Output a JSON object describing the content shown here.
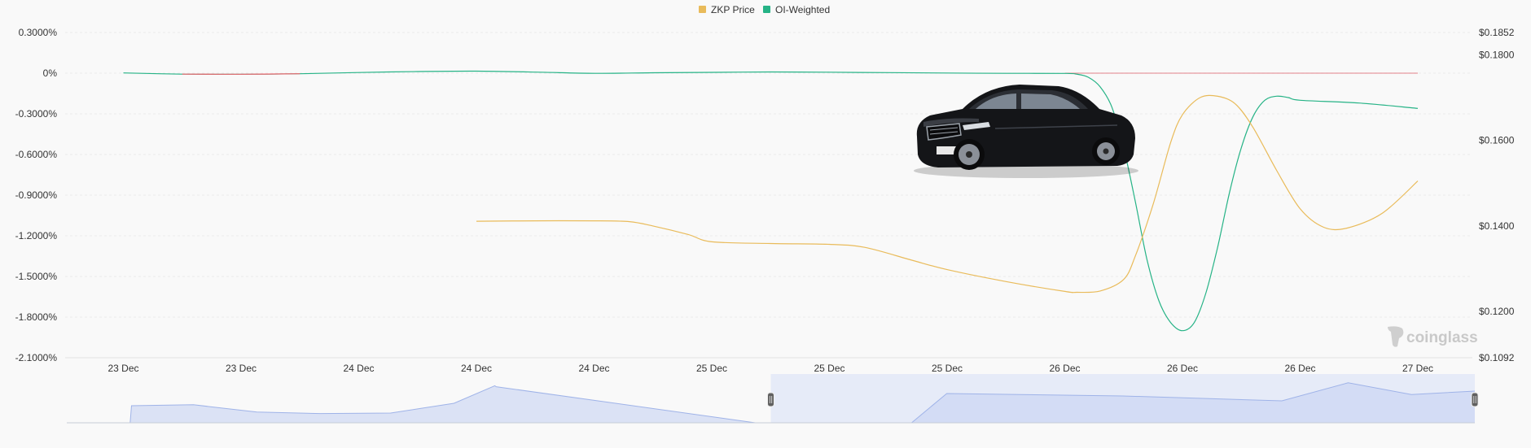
{
  "legend": [
    {
      "label": "ZKP Price",
      "color": "#e9bb5a"
    },
    {
      "label": "OI-Weighted",
      "color": "#26b386"
    }
  ],
  "watermark": "coinglass",
  "chart_data": {
    "type": "line",
    "x_tick_labels": [
      "23 Dec",
      "23 Dec",
      "24 Dec",
      "24 Dec",
      "24 Dec",
      "25 Dec",
      "25 Dec",
      "25 Dec",
      "26 Dec",
      "26 Dec",
      "26 Dec",
      "27 Dec"
    ],
    "y_left": {
      "ticks": [
        "0.3000%",
        "0%",
        "-0.3000%",
        "-0.6000%",
        "-0.9000%",
        "-1.2000%",
        "-1.5000%",
        "-1.8000%",
        "-2.1000%"
      ],
      "range": [
        -2.1,
        0.3
      ]
    },
    "y_right": {
      "ticks": [
        "$0.1852",
        "$0.1800",
        "$0.1600",
        "$0.1400",
        "$0.1200",
        "$0.1092"
      ],
      "range": [
        0.1092,
        0.1852
      ]
    },
    "series": [
      {
        "name": "ZKP Price",
        "axis": "right",
        "color": "#e9bb5a",
        "x": [
          3,
          3.5,
          4,
          4.3,
          4.5,
          4.8,
          5,
          5.5,
          6,
          6.3,
          6.7,
          7,
          7.5,
          8,
          8.1,
          8.3,
          8.5,
          8.6,
          8.75,
          8.9,
          9,
          9.15,
          9.3,
          9.45,
          9.6,
          9.8,
          10,
          10.2,
          10.4,
          10.7,
          11
        ],
        "values": [
          0.1411,
          0.1412,
          0.1412,
          0.141,
          0.14,
          0.138,
          0.1363,
          0.1359,
          0.1357,
          0.135,
          0.132,
          0.1298,
          0.127,
          0.1247,
          0.1245,
          0.1248,
          0.1275,
          0.133,
          0.145,
          0.1595,
          0.166,
          0.17,
          0.1703,
          0.1685,
          0.163,
          0.153,
          0.144,
          0.1397,
          0.1395,
          0.143,
          0.1505
        ]
      },
      {
        "name": "OI-Weighted",
        "axis": "left",
        "color": "#26b386",
        "negative_color": "#f0646e",
        "x": [
          0,
          0.5,
          1,
          1.5,
          2,
          2.5,
          3,
          3.5,
          4,
          4.5,
          5,
          5.5,
          6,
          6.5,
          7,
          7.5,
          8,
          8.1,
          8.2,
          8.3,
          8.4,
          8.5,
          8.6,
          8.7,
          8.8,
          8.9,
          9,
          9.1,
          9.2,
          9.3,
          9.4,
          9.5,
          9.6,
          9.7,
          9.8,
          9.9,
          10,
          10.5,
          11
        ],
        "values": [
          0.002,
          -0.007,
          -0.008,
          -0.004,
          0.005,
          0.012,
          0.015,
          0.008,
          -0.001,
          0.003,
          0.006,
          0.009,
          0.007,
          0.004,
          0.001,
          -0.001,
          -0.002,
          -0.007,
          -0.03,
          -0.1,
          -0.25,
          -0.55,
          -0.95,
          -1.38,
          -1.68,
          -1.84,
          -1.9,
          -1.84,
          -1.62,
          -1.28,
          -0.88,
          -0.55,
          -0.32,
          -0.2,
          -0.17,
          -0.18,
          -0.2,
          -0.22,
          -0.26
        ]
      }
    ]
  },
  "range_slider": {
    "range": [
      0.5,
      1.0
    ],
    "preview_x": [
      0,
      0.045,
      0.046,
      0.09,
      0.135,
      0.18,
      0.23,
      0.275,
      0.304,
      0.305,
      0.489,
      0.49,
      0.6,
      0.625,
      0.75,
      0.863,
      0.91,
      0.955,
      1.0
    ],
    "preview_values": [
      0,
      0,
      0.35,
      0.37,
      0.22,
      0.19,
      0.2,
      0.4,
      0.76,
      0.74,
      0,
      0,
      0,
      0.6,
      0.55,
      0.45,
      0.82,
      0.58,
      0.65
    ]
  }
}
